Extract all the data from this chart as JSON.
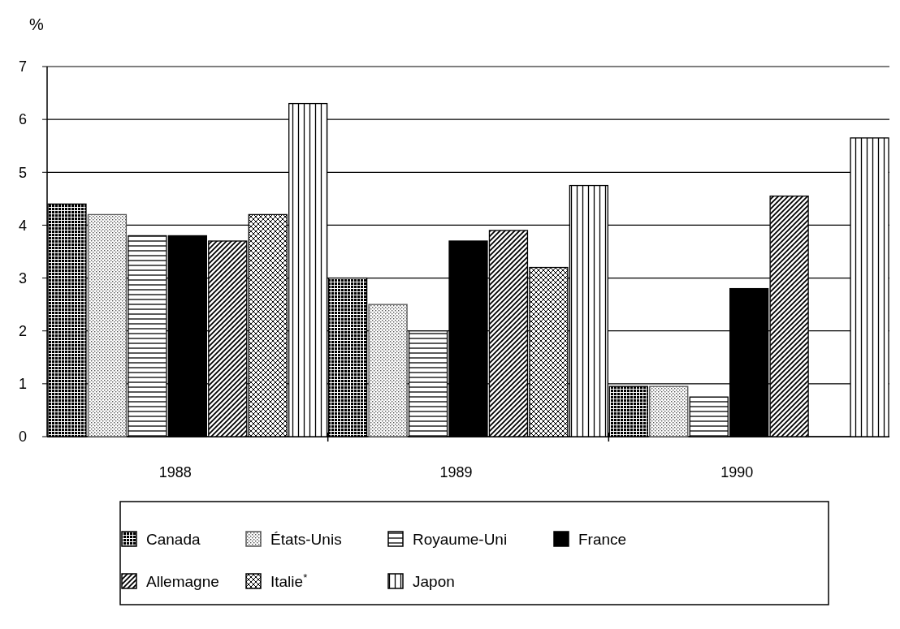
{
  "chart_data": {
    "type": "bar",
    "ylabel": "%",
    "categories": [
      "1988",
      "1989",
      "1990"
    ],
    "series": [
      {
        "name": "Canada",
        "color": "#000000",
        "values": [
          4.4,
          3.0,
          0.95
        ]
      },
      {
        "name": "États-Unis",
        "color": "#555555",
        "values": [
          4.2,
          2.5,
          0.95
        ]
      },
      {
        "name": "Royaume-Uni",
        "color": "#000000",
        "values": [
          3.8,
          2.0,
          0.75
        ]
      },
      {
        "name": "France",
        "color": "#000000",
        "values": [
          3.8,
          3.7,
          2.8
        ]
      },
      {
        "name": "Allemagne",
        "color": "#000000",
        "values": [
          3.7,
          3.9,
          4.55
        ]
      },
      {
        "name": "Italie$^{*}$",
        "color": "#000000",
        "values": [
          4.2,
          3.2,
          null
        ]
      },
      {
        "name": "Japon",
        "color": "#000000",
        "values": [
          6.3,
          4.75,
          5.65
        ]
      }
    ],
    "ylim": [
      0,
      7
    ],
    "yticks": [
      0,
      1,
      2,
      3,
      4,
      5,
      6,
      7
    ],
    "grid": "y",
    "legend": "bottom"
  }
}
